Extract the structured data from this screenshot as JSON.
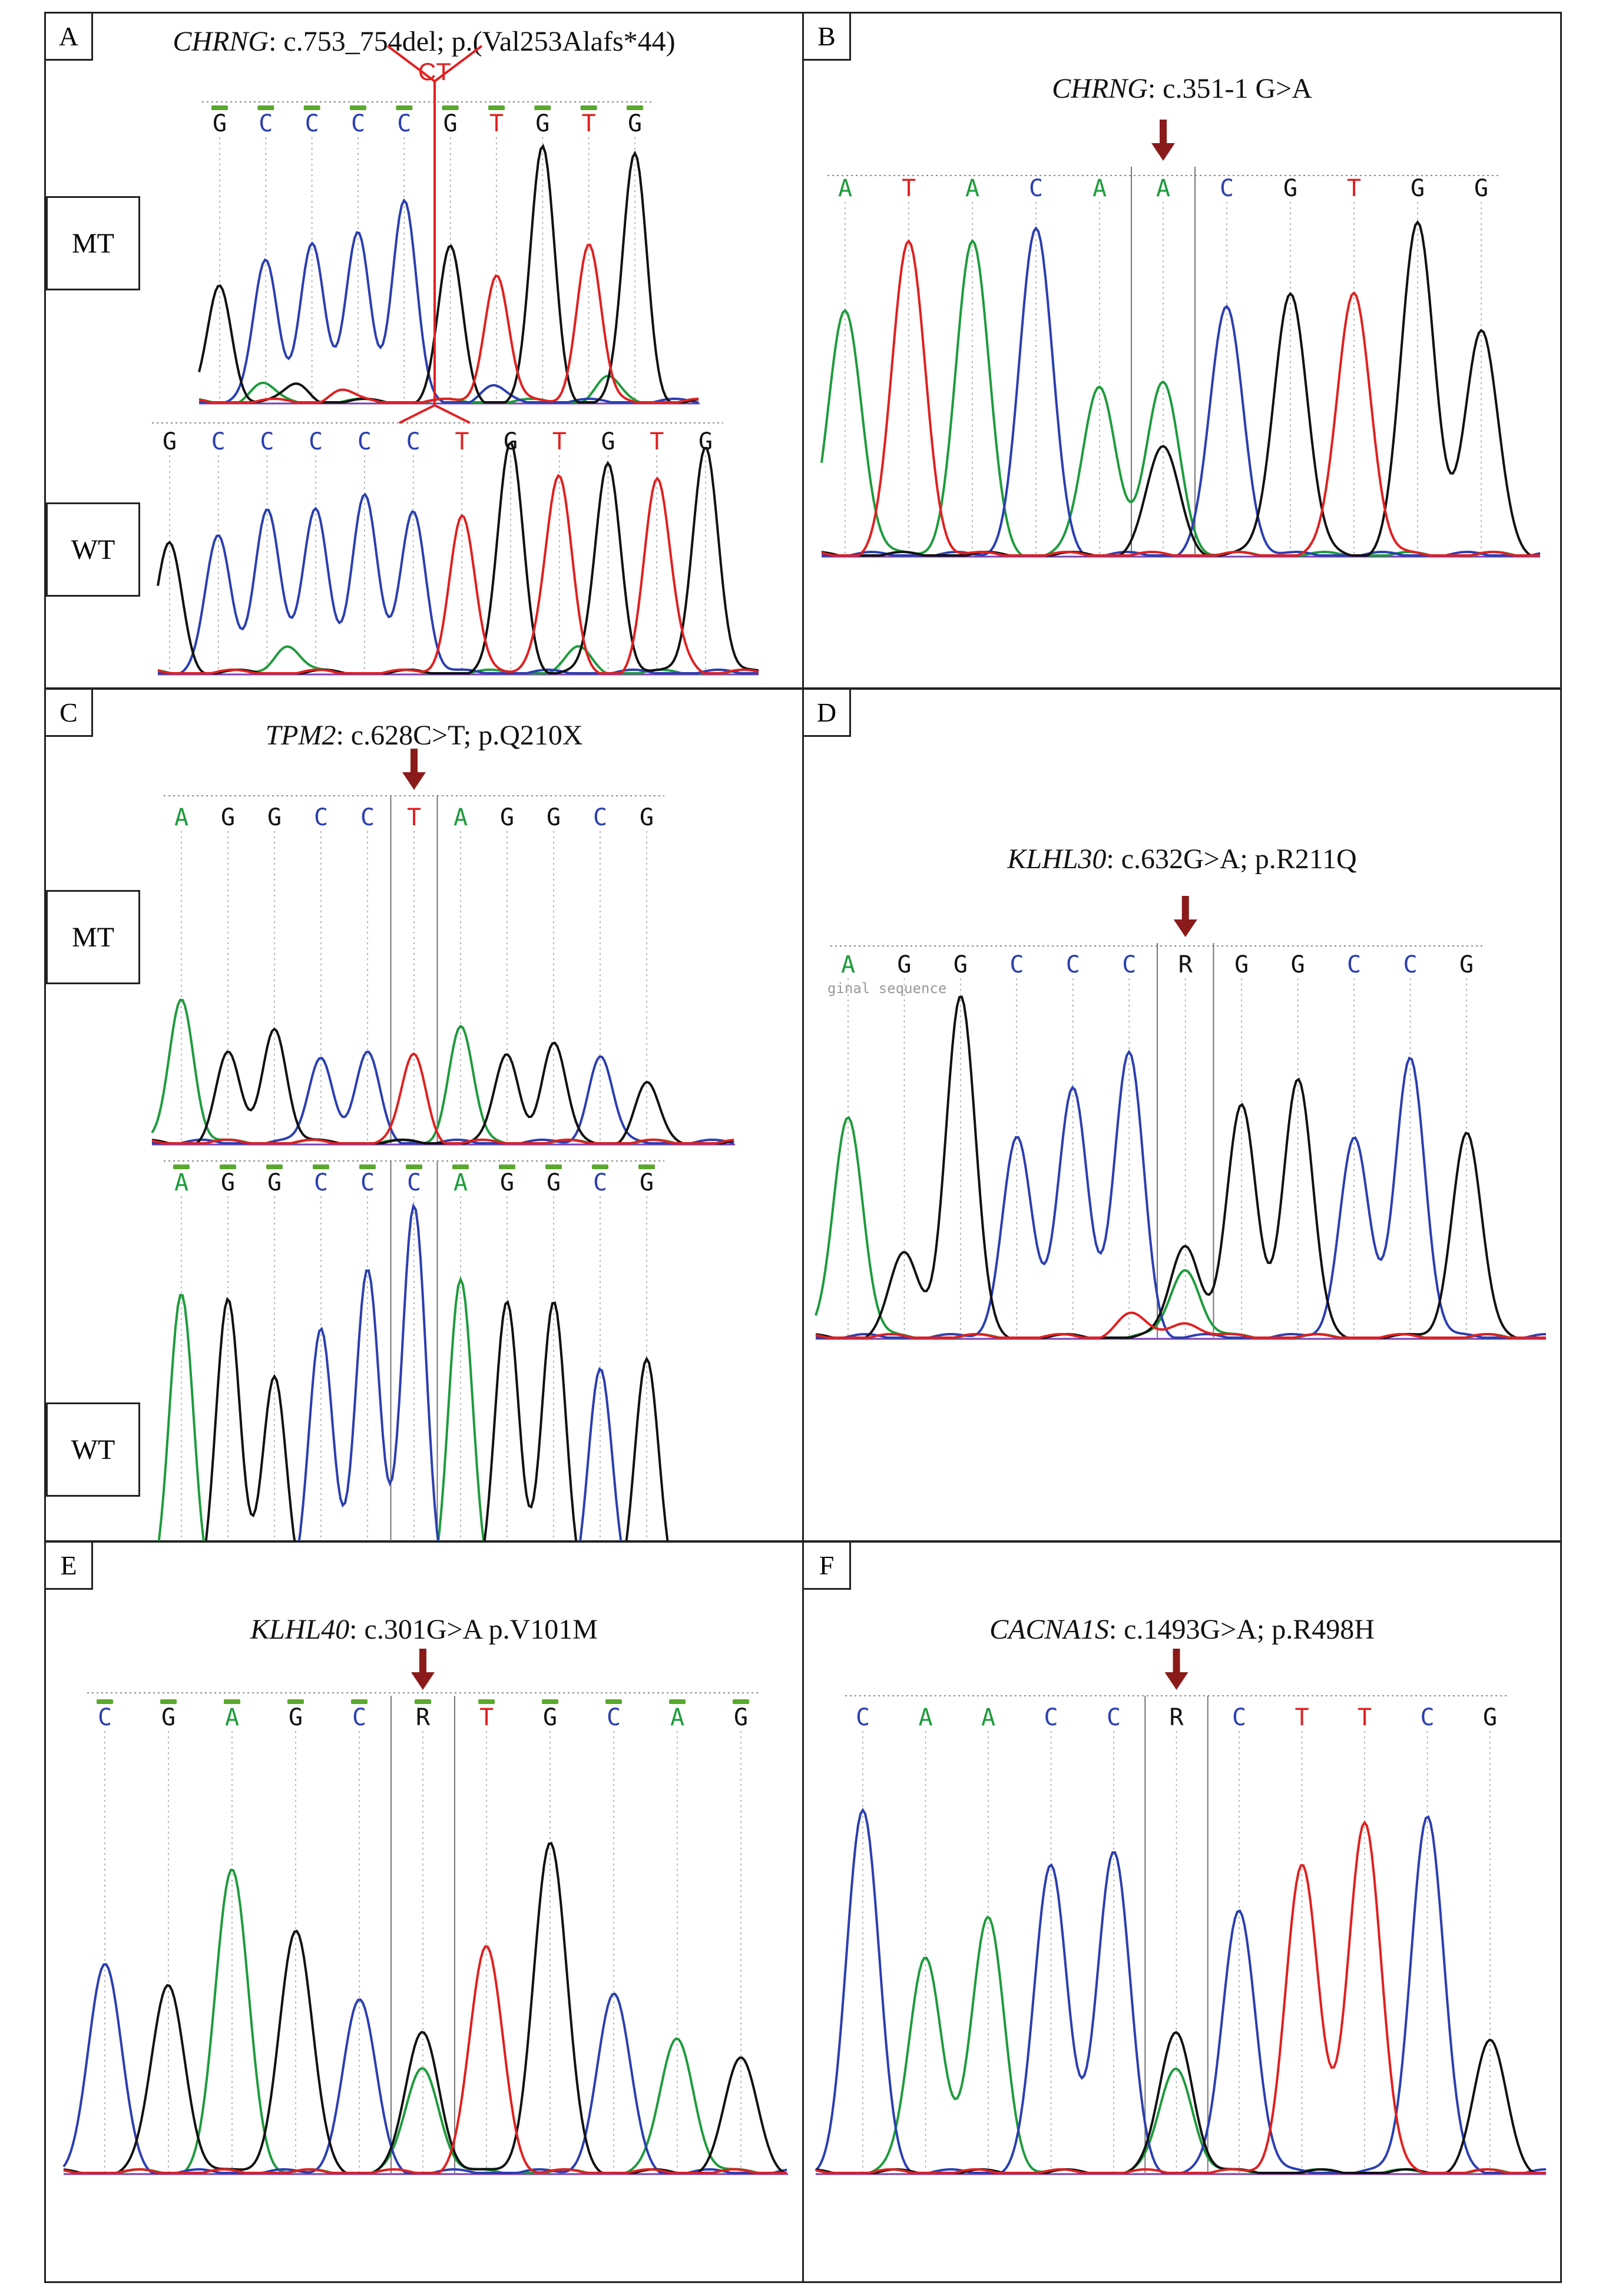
{
  "colors": {
    "A": "#1e9b3c",
    "C": "#2b3fb0",
    "G": "#111111",
    "T": "#e02020",
    "R": "#111111",
    "arrow": "#8b1a1a"
  },
  "panels": {
    "A": {
      "letter": "A",
      "gene": "CHRNG",
      "rest": ": c.753_754del; p.(Val253Alafs*44)",
      "mt_label": "MT",
      "wt_label": "WT",
      "deletion_label": "CT",
      "mt_seq": [
        "G",
        "C",
        "C",
        "C",
        "C",
        "G",
        "T",
        "G",
        "T",
        "G"
      ],
      "wt_seq": [
        "G",
        "C",
        "C",
        "C",
        "C",
        "C",
        "T",
        "G",
        "T",
        "G",
        "T",
        "G"
      ]
    },
    "B": {
      "letter": "B",
      "gene": "CHRNG",
      "rest": ": c.351-1 G>A",
      "seq": [
        "A",
        "T",
        "A",
        "C",
        "A",
        "A",
        "C",
        "G",
        "T",
        "G",
        "G"
      ]
    },
    "C": {
      "letter": "C",
      "gene": "TPM2",
      "rest": ": c.628C>T; p.Q210X",
      "mt_label": "MT",
      "wt_label": "WT",
      "mt_seq": [
        "A",
        "G",
        "G",
        "C",
        "C",
        "T",
        "A",
        "G",
        "G",
        "C",
        "G"
      ],
      "wt_seq": [
        "A",
        "G",
        "G",
        "C",
        "C",
        "C",
        "A",
        "G",
        "G",
        "C",
        "G"
      ]
    },
    "D": {
      "letter": "D",
      "gene": "KLHL30",
      "rest": ": c.632G>A; p.R211Q",
      "ghost": "ginal sequence",
      "seq": [
        "A",
        "G",
        "G",
        "C",
        "C",
        "C",
        "R",
        "G",
        "G",
        "C",
        "C",
        "G"
      ]
    },
    "E": {
      "letter": "E",
      "gene": "KLHL40",
      "rest": ": c.301G>A p.V101M",
      "seq": [
        "C",
        "G",
        "A",
        "G",
        "C",
        "R",
        "T",
        "G",
        "C",
        "A",
        "G"
      ]
    },
    "F": {
      "letter": "F",
      "gene": "CACNA1S",
      "rest": ": c.1493G>A; p.R498H",
      "seq": [
        "C",
        "A",
        "A",
        "C",
        "C",
        "R",
        "C",
        "T",
        "T",
        "C",
        "G"
      ]
    }
  }
}
